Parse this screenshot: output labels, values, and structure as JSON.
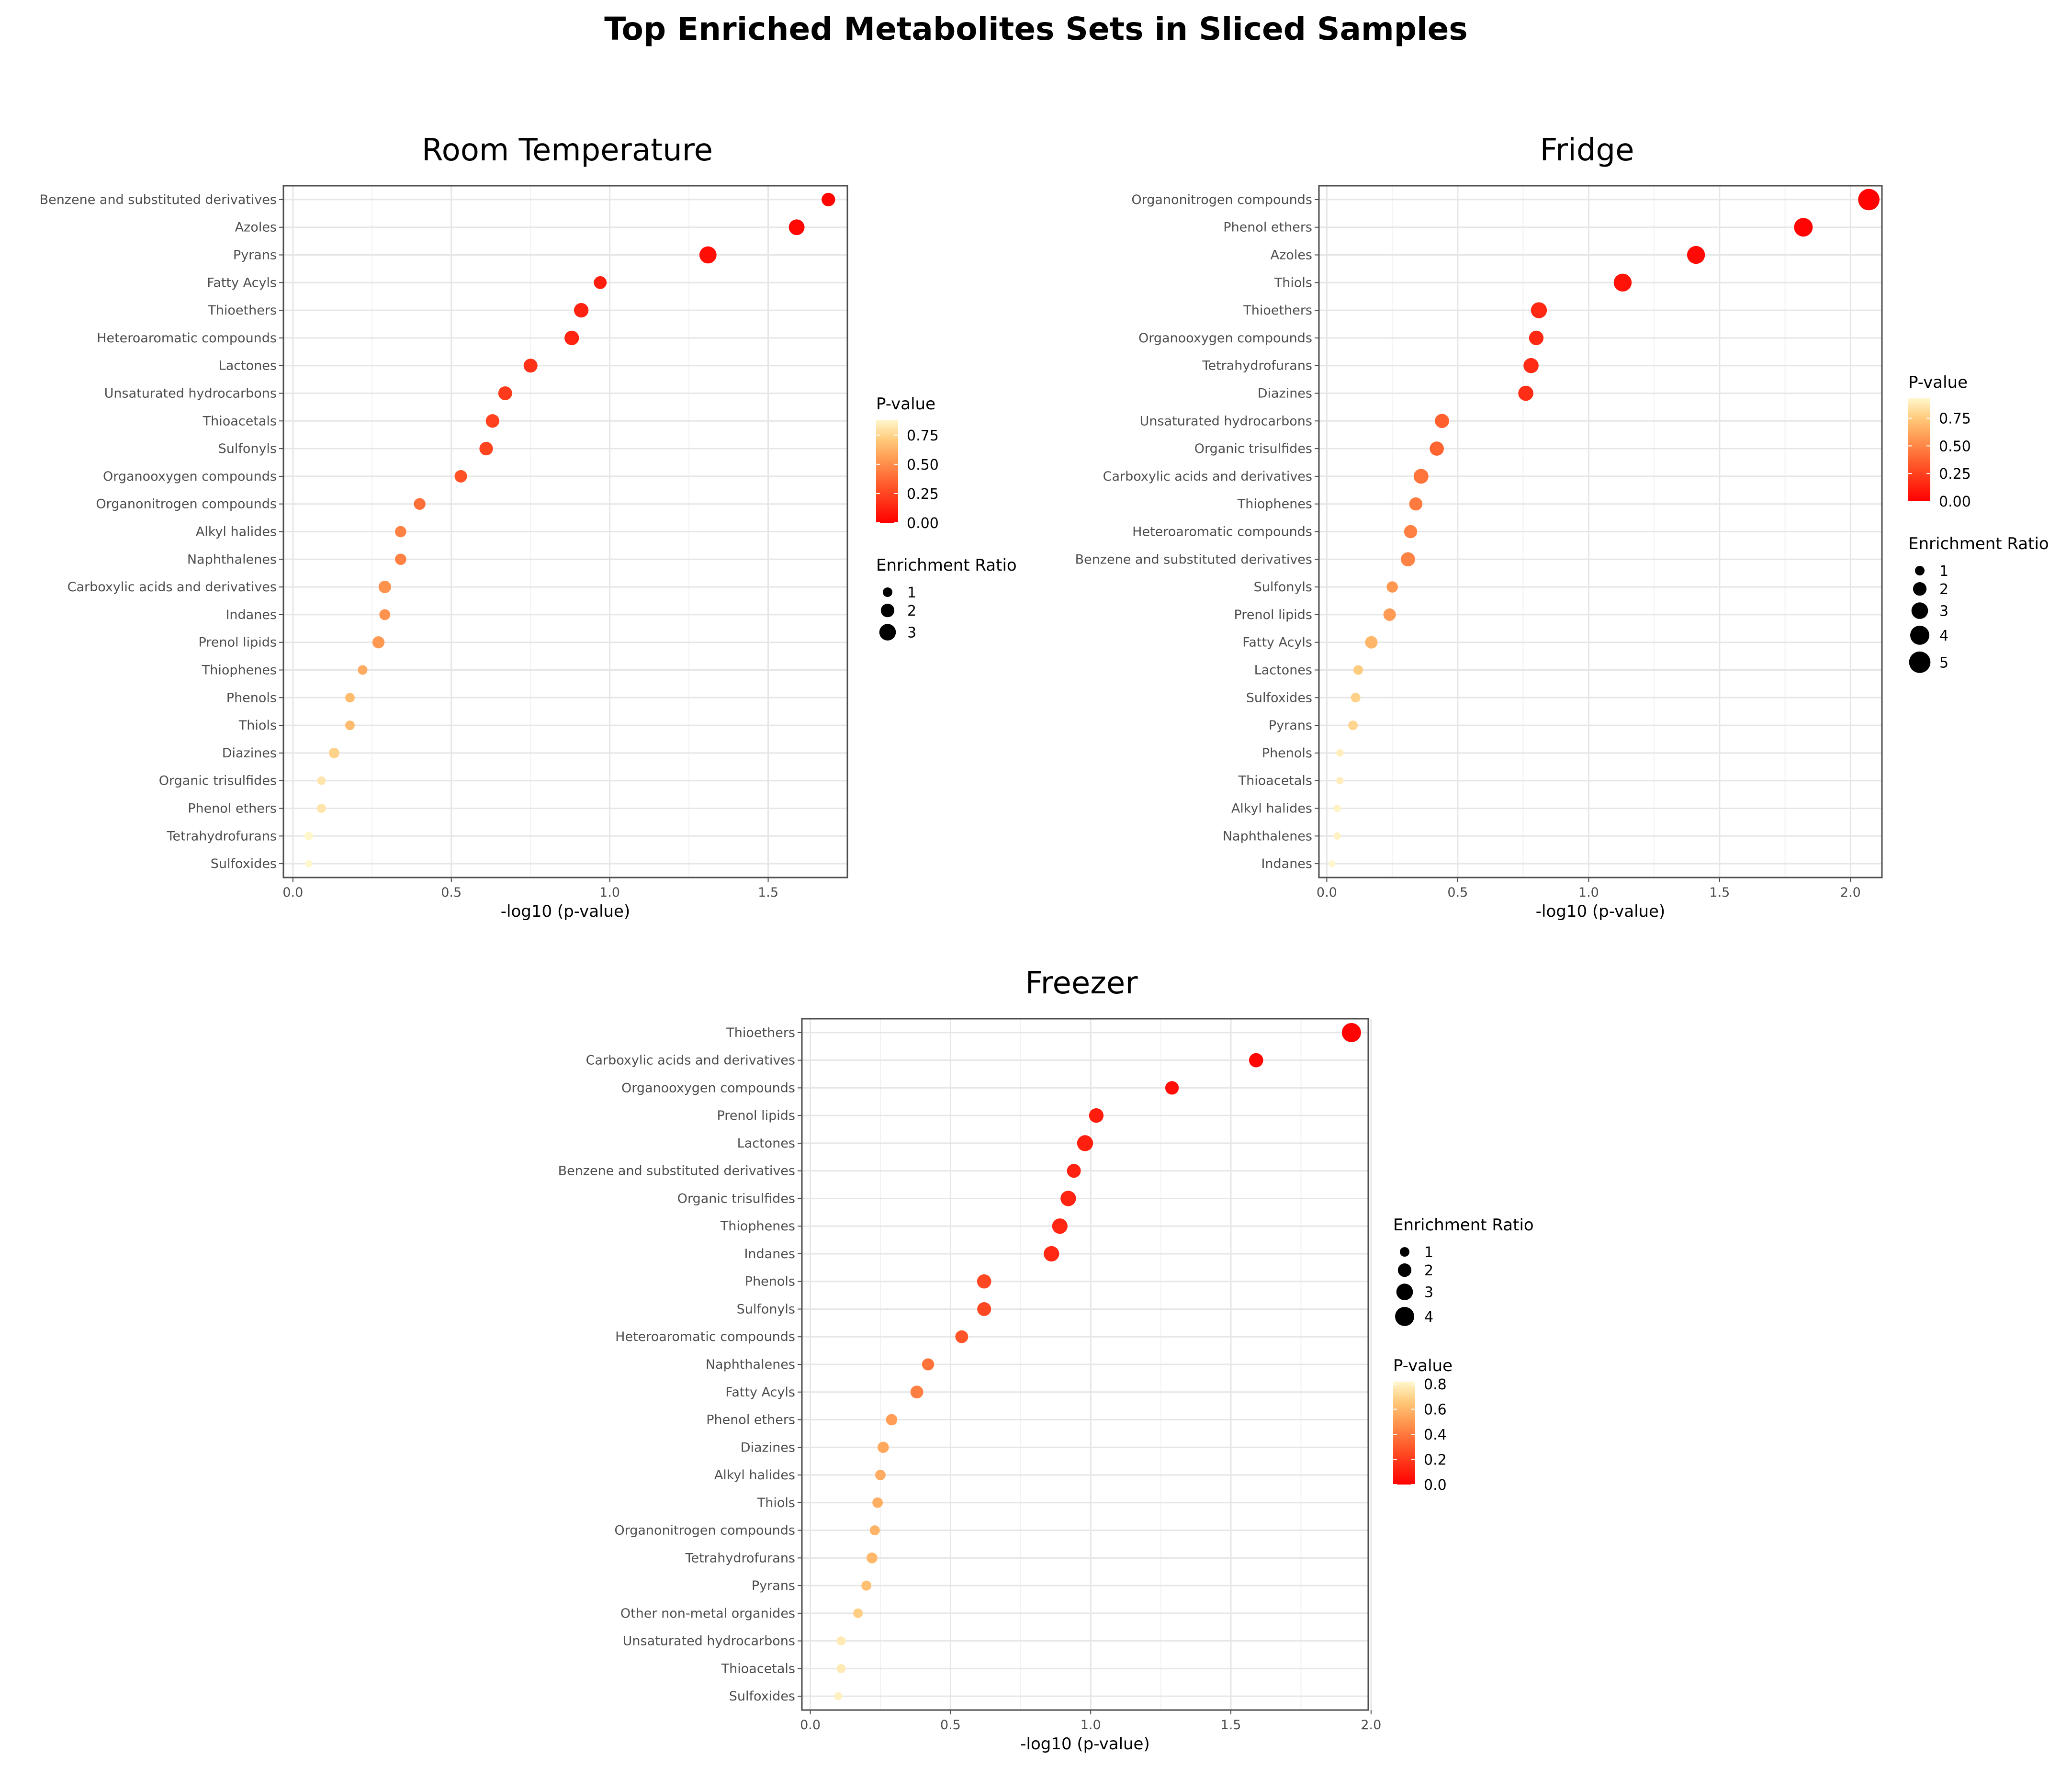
{
  "title": "Top Enriched Metabolites Sets in Sliced Samples",
  "legend_titles": {
    "pvalue": "P-value",
    "enrichment": "Enrichment Ratio"
  },
  "colors": {
    "low_p": "#ff0000",
    "mid_p": "#ff8c4a",
    "high_p": "#fff7cc",
    "grid": "#ebebeb",
    "border": "#333333"
  },
  "chart_data": [
    {
      "type": "scatter",
      "title": "Room Temperature",
      "xlabel": "-log10 (p-value)",
      "ylabel": "",
      "xlim": [
        -0.03,
        1.75
      ],
      "xticks": [
        0,
        0.5,
        1,
        1.5
      ],
      "xtick_labels": [
        "0.0",
        "0.5",
        "1.0",
        "1.5"
      ],
      "pvalue_legend": {
        "range": [
          0,
          0.88
        ],
        "ticks": [
          0.75,
          0.5,
          0.25,
          0.0
        ],
        "labels": [
          "0.75",
          "0.50",
          "0.25",
          "0.00"
        ]
      },
      "enrichment_legend": {
        "values": [
          1,
          2,
          3
        ],
        "labels": [
          "1",
          "2",
          "3"
        ]
      },
      "legend_order": [
        "pvalue",
        "enrichment"
      ],
      "points": [
        {
          "name": "Benzene and substituted derivatives",
          "x": 1.69,
          "ratio": 2.0
        },
        {
          "name": "Azoles",
          "x": 1.59,
          "ratio": 2.7
        },
        {
          "name": "Pyrans",
          "x": 1.31,
          "ratio": 3.2
        },
        {
          "name": "Fatty Acyls",
          "x": 0.97,
          "ratio": 1.8
        },
        {
          "name": "Thioethers",
          "x": 0.91,
          "ratio": 2.3
        },
        {
          "name": "Heteroaromatic compounds",
          "x": 0.88,
          "ratio": 2.3
        },
        {
          "name": "Lactones",
          "x": 0.75,
          "ratio": 2.1
        },
        {
          "name": "Unsaturated hydrocarbons",
          "x": 0.67,
          "ratio": 2.1
        },
        {
          "name": "Thioacetals",
          "x": 0.63,
          "ratio": 2.0
        },
        {
          "name": "Sulfonyls",
          "x": 0.61,
          "ratio": 2.0
        },
        {
          "name": "Organooxygen compounds",
          "x": 0.53,
          "ratio": 1.7
        },
        {
          "name": "Organonitrogen compounds",
          "x": 0.4,
          "ratio": 1.5
        },
        {
          "name": "Alkyl halides",
          "x": 0.34,
          "ratio": 1.4
        },
        {
          "name": "Naphthalenes",
          "x": 0.34,
          "ratio": 1.4
        },
        {
          "name": "Carboxylic acids and derivatives",
          "x": 0.29,
          "ratio": 1.7
        },
        {
          "name": "Indanes",
          "x": 0.29,
          "ratio": 1.3
        },
        {
          "name": "Prenol lipids",
          "x": 0.27,
          "ratio": 1.6
        },
        {
          "name": "Thiophenes",
          "x": 0.22,
          "ratio": 1.0
        },
        {
          "name": "Phenols",
          "x": 0.18,
          "ratio": 1.0
        },
        {
          "name": "Thiols",
          "x": 0.18,
          "ratio": 1.0
        },
        {
          "name": "Diazines",
          "x": 0.13,
          "ratio": 1.2
        },
        {
          "name": "Organic trisulfides",
          "x": 0.09,
          "ratio": 0.8
        },
        {
          "name": "Phenol ethers",
          "x": 0.09,
          "ratio": 0.9
        },
        {
          "name": "Tetrahydrofurans",
          "x": 0.05,
          "ratio": 0.8
        },
        {
          "name": "Sulfoxides",
          "x": 0.05,
          "ratio": 0.6
        }
      ]
    },
    {
      "type": "scatter",
      "title": "Fridge",
      "xlabel": "-log10 (p-value)",
      "ylabel": "",
      "xlim": [
        -0.03,
        2.12
      ],
      "xticks": [
        0,
        0.5,
        1,
        1.5,
        2
      ],
      "xtick_labels": [
        "0.0",
        "0.5",
        "1.0",
        "1.5",
        "2.0"
      ],
      "pvalue_legend": {
        "range": [
          0,
          0.93
        ],
        "ticks": [
          0.75,
          0.5,
          0.25,
          0.0
        ],
        "labels": [
          "0.75",
          "0.50",
          "0.25",
          "0.00"
        ]
      },
      "enrichment_legend": {
        "values": [
          1,
          2,
          3,
          4,
          5
        ],
        "labels": [
          "1",
          "2",
          "3",
          "4",
          "5"
        ]
      },
      "legend_order": [
        "pvalue",
        "enrichment"
      ],
      "points": [
        {
          "name": "Organonitrogen compounds",
          "x": 2.07,
          "ratio": 5.0
        },
        {
          "name": "Phenol ethers",
          "x": 1.82,
          "ratio": 3.8
        },
        {
          "name": "Azoles",
          "x": 1.41,
          "ratio": 3.5
        },
        {
          "name": "Thiols",
          "x": 1.13,
          "ratio": 3.5
        },
        {
          "name": "Thioethers",
          "x": 0.81,
          "ratio": 2.8
        },
        {
          "name": "Organooxygen compounds",
          "x": 0.8,
          "ratio": 2.3
        },
        {
          "name": "Tetrahydrofurans",
          "x": 0.78,
          "ratio": 2.5
        },
        {
          "name": "Diazines",
          "x": 0.76,
          "ratio": 2.5
        },
        {
          "name": "Unsaturated hydrocarbons",
          "x": 0.44,
          "ratio": 2.2
        },
        {
          "name": "Organic trisulfides",
          "x": 0.42,
          "ratio": 2.2
        },
        {
          "name": "Carboxylic acids and derivatives",
          "x": 0.36,
          "ratio": 2.4
        },
        {
          "name": "Thiophenes",
          "x": 0.34,
          "ratio": 1.9
        },
        {
          "name": "Heteroaromatic compounds",
          "x": 0.32,
          "ratio": 1.9
        },
        {
          "name": "Benzene and substituted derivatives",
          "x": 0.31,
          "ratio": 2.2
        },
        {
          "name": "Sulfonyls",
          "x": 0.25,
          "ratio": 1.4
        },
        {
          "name": "Prenol lipids",
          "x": 0.24,
          "ratio": 1.7
        },
        {
          "name": "Fatty Acyls",
          "x": 0.17,
          "ratio": 1.7
        },
        {
          "name": "Lactones",
          "x": 0.12,
          "ratio": 1.0
        },
        {
          "name": "Sulfoxides",
          "x": 0.11,
          "ratio": 1.0
        },
        {
          "name": "Pyrans",
          "x": 0.1,
          "ratio": 1.0
        },
        {
          "name": "Phenols",
          "x": 0.05,
          "ratio": 0.6
        },
        {
          "name": "Thioacetals",
          "x": 0.05,
          "ratio": 0.6
        },
        {
          "name": "Alkyl halides",
          "x": 0.04,
          "ratio": 0.6
        },
        {
          "name": "Naphthalenes",
          "x": 0.04,
          "ratio": 0.6
        },
        {
          "name": "Indanes",
          "x": 0.02,
          "ratio": 0.5
        }
      ]
    },
    {
      "type": "scatter",
      "title": "Freezer",
      "xlabel": "-log10 (p-value)",
      "ylabel": "",
      "xlim": [
        -0.03,
        1.99
      ],
      "xticks": [
        0,
        0.5,
        1,
        1.5,
        2
      ],
      "xtick_labels": [
        "0.0",
        "0.5",
        "1.0",
        "1.5",
        "2.0"
      ],
      "pvalue_legend": {
        "range": [
          0,
          0.82
        ],
        "ticks": [
          0.8,
          0.6,
          0.4,
          0.2,
          0.0
        ],
        "labels": [
          "0.8",
          "0.6",
          "0.4",
          "0.2",
          "0.0"
        ]
      },
      "enrichment_legend": {
        "values": [
          1,
          2,
          3,
          4
        ],
        "labels": [
          "1",
          "2",
          "3",
          "4"
        ]
      },
      "legend_order": [
        "enrichment",
        "pvalue"
      ],
      "points": [
        {
          "name": "Thioethers",
          "x": 1.93,
          "ratio": 4.0
        },
        {
          "name": "Carboxylic acids and derivatives",
          "x": 1.59,
          "ratio": 2.2
        },
        {
          "name": "Organooxygen compounds",
          "x": 1.29,
          "ratio": 2.0
        },
        {
          "name": "Prenol lipids",
          "x": 1.02,
          "ratio": 2.3
        },
        {
          "name": "Lactones",
          "x": 0.98,
          "ratio": 2.8
        },
        {
          "name": "Benzene and substituted derivatives",
          "x": 0.94,
          "ratio": 2.1
        },
        {
          "name": "Organic trisulfides",
          "x": 0.92,
          "ratio": 2.6
        },
        {
          "name": "Thiophenes",
          "x": 0.89,
          "ratio": 2.6
        },
        {
          "name": "Indanes",
          "x": 0.86,
          "ratio": 2.6
        },
        {
          "name": "Phenols",
          "x": 0.62,
          "ratio": 2.2
        },
        {
          "name": "Sulfonyls",
          "x": 0.62,
          "ratio": 2.1
        },
        {
          "name": "Heteroaromatic compounds",
          "x": 0.54,
          "ratio": 1.8
        },
        {
          "name": "Naphthalenes",
          "x": 0.42,
          "ratio": 1.6
        },
        {
          "name": "Fatty Acyls",
          "x": 0.38,
          "ratio": 1.8
        },
        {
          "name": "Phenol ethers",
          "x": 0.29,
          "ratio": 1.4
        },
        {
          "name": "Diazines",
          "x": 0.26,
          "ratio": 1.4
        },
        {
          "name": "Alkyl halides",
          "x": 0.25,
          "ratio": 1.2
        },
        {
          "name": "Thiols",
          "x": 0.24,
          "ratio": 1.2
        },
        {
          "name": "Organonitrogen compounds",
          "x": 0.23,
          "ratio": 1.1
        },
        {
          "name": "Tetrahydrofurans",
          "x": 0.22,
          "ratio": 1.3
        },
        {
          "name": "Pyrans",
          "x": 0.2,
          "ratio": 1.1
        },
        {
          "name": "Other non-metal organides",
          "x": 0.17,
          "ratio": 1.0
        },
        {
          "name": "Unsaturated hydrocarbons",
          "x": 0.11,
          "ratio": 0.9
        },
        {
          "name": "Thioacetals",
          "x": 0.11,
          "ratio": 0.9
        },
        {
          "name": "Sulfoxides",
          "x": 0.1,
          "ratio": 0.7
        }
      ]
    }
  ]
}
